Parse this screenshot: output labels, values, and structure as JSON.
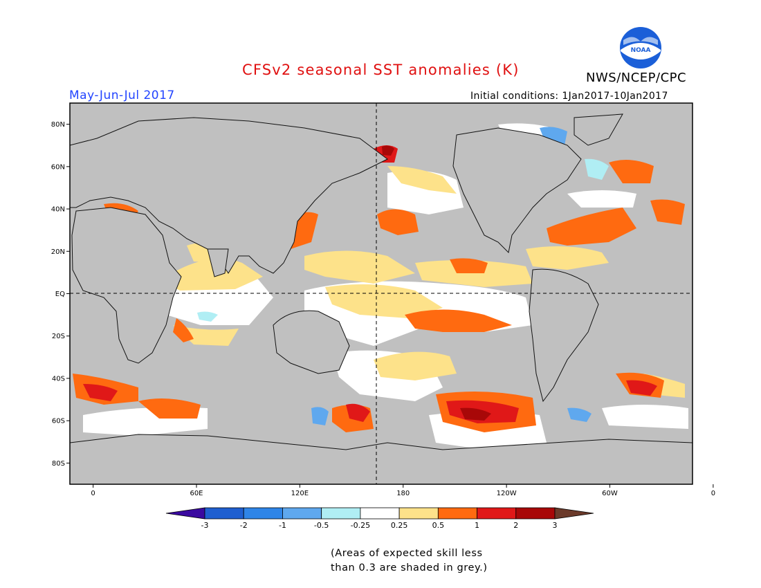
{
  "header": {
    "title": "CFSv2 seasonal SST anomalies (K)",
    "season": "May-Jun-Jul 2017",
    "initial_conditions": "Initial conditions: 1Jan2017-10Jan2017",
    "agency": "NWS/NCEP/CPC",
    "logo_text": "NOAA"
  },
  "map": {
    "lat_ticks": [
      "80N",
      "60N",
      "40N",
      "20N",
      "EQ",
      "20S",
      "40S",
      "60S",
      "80S"
    ],
    "lon_ticks": [
      "0",
      "60E",
      "120E",
      "180",
      "120W",
      "60W",
      "0"
    ]
  },
  "colorbar": {
    "labels": [
      "-3",
      "-2",
      "-1",
      "-0.5",
      "-0.25",
      "0.25",
      "0.5",
      "1",
      "2",
      "3"
    ],
    "colors": [
      "#3a0aa0",
      "#1f5fd0",
      "#2f85e8",
      "#5fa8ee",
      "#b0eef4",
      "#ffffff",
      "#fde28a",
      "#ff6a10",
      "#e01818",
      "#a80808",
      "#6b3a2a"
    ]
  },
  "note": {
    "line1": "(Areas of expected skill less",
    "line2": "than 0.3 are shaded in grey.)"
  }
}
